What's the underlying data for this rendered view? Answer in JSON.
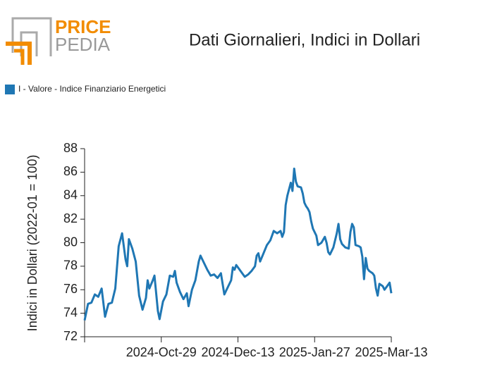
{
  "logo": {
    "part1": "PRICE",
    "part2": "PEDIA"
  },
  "chart_data": {
    "type": "line",
    "title": "Dati Giornalieri, Indici in Dollari",
    "ylabel": "Indici in Dollari (2022-01 = 100)",
    "legend": "top-left",
    "x": [
      "2024-09-14",
      "2024-09-16",
      "2024-09-18",
      "2024-09-20",
      "2024-09-22",
      "2024-09-24",
      "2024-09-26",
      "2024-09-28",
      "2024-09-30",
      "2024-10-02",
      "2024-10-04",
      "2024-10-06",
      "2024-10-08",
      "2024-10-09",
      "2024-10-10",
      "2024-10-12",
      "2024-10-14",
      "2024-10-16",
      "2024-10-18",
      "2024-10-20",
      "2024-10-21",
      "2024-10-22",
      "2024-10-24",
      "2024-10-25",
      "2024-10-27",
      "2024-10-28",
      "2024-10-30",
      "2024-11-01",
      "2024-11-03",
      "2024-11-05",
      "2024-11-06",
      "2024-11-07",
      "2024-11-09",
      "2024-11-11",
      "2024-11-13",
      "2024-11-14",
      "2024-11-16",
      "2024-11-18",
      "2024-11-20",
      "2024-11-21",
      "2024-11-23",
      "2024-11-25",
      "2024-11-27",
      "2024-11-29",
      "2024-12-01",
      "2024-12-03",
      "2024-12-04",
      "2024-12-05",
      "2024-12-07",
      "2024-12-09",
      "2024-12-10",
      "2024-12-11",
      "2024-12-12",
      "2024-12-15",
      "2024-12-17",
      "2024-12-19",
      "2024-12-21",
      "2024-12-23",
      "2024-12-24",
      "2024-12-25",
      "2024-12-26",
      "2024-12-28",
      "2024-12-30",
      "2025-01-01",
      "2025-01-03",
      "2025-01-05",
      "2025-01-07",
      "2025-01-08",
      "2025-01-09",
      "2025-01-10",
      "2025-01-11",
      "2025-01-13",
      "2025-01-14",
      "2025-01-15",
      "2025-01-16",
      "2025-01-17",
      "2025-01-19",
      "2025-01-20",
      "2025-01-21",
      "2025-01-22",
      "2025-01-23",
      "2025-01-24",
      "2025-01-25",
      "2025-01-26",
      "2025-01-28",
      "2025-01-29",
      "2025-01-31",
      "2025-02-02",
      "2025-02-03",
      "2025-02-04",
      "2025-02-05",
      "2025-02-07",
      "2025-02-09",
      "2025-02-10",
      "2025-02-11",
      "2025-02-12",
      "2025-02-14",
      "2025-02-16",
      "2025-02-17",
      "2025-02-18",
      "2025-02-19",
      "2025-02-20",
      "2025-02-22",
      "2025-02-23",
      "2025-02-24",
      "2025-02-25",
      "2025-02-26",
      "2025-02-27",
      "2025-02-28",
      "2025-03-02",
      "2025-03-03",
      "2025-03-04",
      "2025-03-05",
      "2025-03-06",
      "2025-03-08",
      "2025-03-09",
      "2025-03-11",
      "2025-03-12",
      "2025-03-13"
    ],
    "series": [
      {
        "name": "I - Valore - Indice Finanziario Energetici",
        "color": "#1f77b4",
        "values": [
          73.4,
          74.8,
          74.9,
          75.6,
          75.4,
          76.1,
          73.7,
          74.8,
          74.9,
          76.1,
          79.7,
          80.8,
          78.6,
          78.0,
          80.3,
          79.5,
          78.4,
          75.5,
          74.3,
          75.3,
          76.8,
          76.1,
          76.8,
          77.2,
          74.2,
          73.5,
          75.0,
          75.6,
          77.2,
          77.1,
          77.6,
          76.6,
          75.8,
          75.2,
          75.7,
          74.6,
          76.0,
          76.8,
          78.4,
          78.9,
          78.3,
          77.7,
          77.2,
          77.3,
          77.0,
          77.4,
          76.5,
          75.6,
          76.2,
          76.8,
          77.9,
          77.7,
          78.1,
          77.5,
          77.1,
          77.3,
          77.6,
          78.0,
          78.9,
          79.1,
          78.4,
          79.1,
          79.8,
          80.2,
          81.0,
          80.8,
          81.0,
          80.5,
          80.9,
          83.2,
          84.0,
          85.1,
          84.4,
          86.3,
          85.2,
          84.8,
          84.7,
          84.2,
          83.4,
          83.1,
          82.9,
          82.6,
          81.8,
          81.2,
          80.6,
          79.8,
          80.0,
          80.5,
          80.0,
          79.2,
          79.0,
          79.6,
          80.8,
          81.6,
          80.3,
          79.9,
          79.6,
          79.5,
          80.9,
          81.6,
          81.3,
          79.8,
          79.7,
          79.6,
          78.8,
          76.9,
          78.7,
          77.8,
          77.6,
          77.4,
          77.2,
          76.1,
          75.5,
          76.5,
          76.3,
          76.0,
          76.4,
          76.6,
          75.7
        ]
      }
    ],
    "xlim": [
      "2024-09-14",
      "2025-03-13"
    ],
    "xticks": [
      {
        "value": "2024-10-29",
        "label": "2024-Oct-29"
      },
      {
        "value": "2024-12-13",
        "label": "2024-Dec-13"
      },
      {
        "value": "2025-01-27",
        "label": "2025-Jan-27"
      },
      {
        "value": "2025-03-13",
        "label": "2025-Mar-13"
      }
    ],
    "ylim": [
      72,
      88
    ],
    "yticks": [
      72,
      74,
      76,
      78,
      80,
      82,
      84,
      86,
      88
    ],
    "grid": false
  }
}
